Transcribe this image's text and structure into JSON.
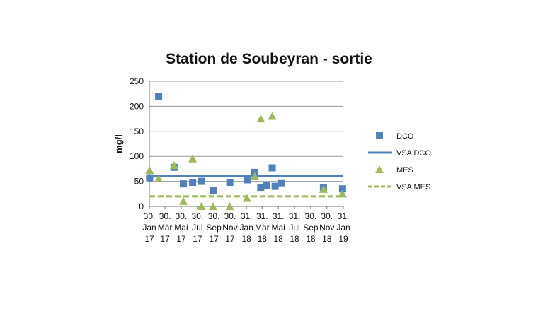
{
  "chart_data": {
    "type": "scatter",
    "title": "Station de Soubeyran - sortie",
    "ylabel": "mg/l",
    "xlabel": "",
    "ylim": [
      0,
      250
    ],
    "yticks": [
      0,
      50,
      100,
      150,
      200,
      250
    ],
    "grid": true,
    "legend_position": "right",
    "x_range": [
      "2017-01-30",
      "2019-01-31"
    ],
    "xticks": [
      {
        "date": "2017-01-30",
        "label": [
          "30.",
          "Jan",
          "17"
        ]
      },
      {
        "date": "2017-03-30",
        "label": [
          "30.",
          "Mär",
          "17"
        ]
      },
      {
        "date": "2017-05-30",
        "label": [
          "30.",
          "Mai",
          "17"
        ]
      },
      {
        "date": "2017-07-30",
        "label": [
          "30.",
          "Jul",
          "17"
        ]
      },
      {
        "date": "2017-09-30",
        "label": [
          "30.",
          "Sep",
          "17"
        ]
      },
      {
        "date": "2017-11-30",
        "label": [
          "30.",
          "Nov",
          "17"
        ]
      },
      {
        "date": "2018-01-31",
        "label": [
          "31.",
          "Jan",
          "18"
        ]
      },
      {
        "date": "2018-03-31",
        "label": [
          "31.",
          "Mär",
          "18"
        ]
      },
      {
        "date": "2018-05-31",
        "label": [
          "31.",
          "Mai",
          "18"
        ]
      },
      {
        "date": "2018-07-31",
        "label": [
          "31.",
          "Jul",
          "18"
        ]
      },
      {
        "date": "2018-09-30",
        "label": [
          "30.",
          "Sep",
          "18"
        ]
      },
      {
        "date": "2018-11-30",
        "label": [
          "30.",
          "Nov",
          "18"
        ]
      },
      {
        "date": "2019-01-31",
        "label": [
          "31.",
          "Jan",
          "19"
        ]
      }
    ],
    "series": [
      {
        "name": "DCO",
        "kind": "points",
        "marker": "square",
        "color": "#4F81BD",
        "points": [
          {
            "x": "2017-01-31",
            "y": 57
          },
          {
            "x": "2017-03-06",
            "y": 220
          },
          {
            "x": "2017-05-03",
            "y": 78
          },
          {
            "x": "2017-06-07",
            "y": 45
          },
          {
            "x": "2017-07-12",
            "y": 48
          },
          {
            "x": "2017-08-14",
            "y": 50
          },
          {
            "x": "2017-09-27",
            "y": 32
          },
          {
            "x": "2017-11-29",
            "y": 48
          },
          {
            "x": "2018-02-02",
            "y": 53
          },
          {
            "x": "2018-03-03",
            "y": 68
          },
          {
            "x": "2018-03-26",
            "y": 38
          },
          {
            "x": "2018-04-17",
            "y": 42
          },
          {
            "x": "2018-05-08",
            "y": 77
          },
          {
            "x": "2018-05-19",
            "y": 40
          },
          {
            "x": "2018-06-13",
            "y": 47
          },
          {
            "x": "2018-11-17",
            "y": 38
          },
          {
            "x": "2019-01-28",
            "y": 35
          }
        ]
      },
      {
        "name": "VSA DCO",
        "kind": "hline",
        "style": "solid",
        "color": "#4F81BD",
        "y": 60
      },
      {
        "name": "MES",
        "kind": "points",
        "marker": "triangle",
        "color": "#9BBB59",
        "points": [
          {
            "x": "2017-01-31",
            "y": 72
          },
          {
            "x": "2017-03-06",
            "y": 55
          },
          {
            "x": "2017-05-03",
            "y": 82
          },
          {
            "x": "2017-06-07",
            "y": 10
          },
          {
            "x": "2017-07-12",
            "y": 95
          },
          {
            "x": "2017-08-14",
            "y": 0
          },
          {
            "x": "2017-09-27",
            "y": 0
          },
          {
            "x": "2017-11-29",
            "y": 0
          },
          {
            "x": "2018-02-02",
            "y": 16
          },
          {
            "x": "2018-03-03",
            "y": 60
          },
          {
            "x": "2018-03-26",
            "y": 175
          },
          {
            "x": "2018-05-08",
            "y": 180
          },
          {
            "x": "2018-11-17",
            "y": 34
          },
          {
            "x": "2019-01-28",
            "y": 25
          }
        ]
      },
      {
        "name": "VSA MES",
        "kind": "hline",
        "style": "dashed",
        "color": "#9BBB59",
        "y": 20
      }
    ]
  }
}
